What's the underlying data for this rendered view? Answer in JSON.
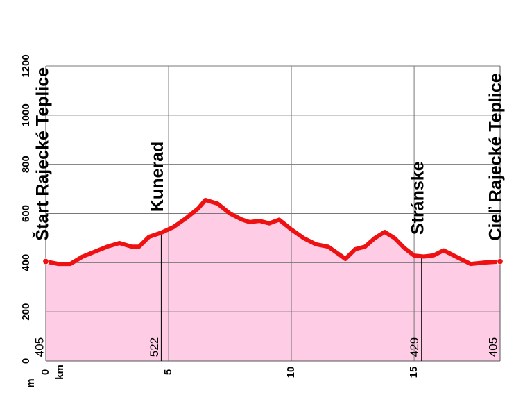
{
  "chart_data": {
    "type": "area",
    "title": "",
    "xlabel": "km",
    "ylabel": "m",
    "xlim": [
      0,
      18.5
    ],
    "ylim": [
      0,
      1200
    ],
    "x_ticks": [
      "0",
      "5",
      "10",
      "15"
    ],
    "y_ticks": [
      "0",
      "200",
      "400",
      "600",
      "800",
      "1000",
      "1200"
    ],
    "grid": true,
    "colors": {
      "fill": "#ffcce6",
      "line": "#ee1111",
      "grid": "#777777"
    },
    "series": [
      {
        "x": [
          0,
          0.5,
          1.0,
          1.5,
          2.0,
          2.5,
          3.0,
          3.5,
          3.8,
          4.2,
          4.7,
          5.2,
          5.7,
          6.2,
          6.5,
          7.0,
          7.5,
          8.0,
          8.3,
          8.7,
          9.1,
          9.5,
          10.0,
          10.5,
          11.0,
          11.5,
          12.0,
          12.2,
          12.6,
          13.0,
          13.4,
          13.8,
          14.2,
          14.6,
          15.0,
          15.4,
          15.8,
          16.2,
          16.8,
          17.3,
          17.8,
          18.5
        ],
        "y": [
          405,
          395,
          395,
          425,
          445,
          465,
          480,
          465,
          465,
          505,
          522,
          545,
          580,
          620,
          655,
          640,
          600,
          575,
          565,
          570,
          560,
          575,
          535,
          500,
          475,
          465,
          430,
          415,
          455,
          465,
          500,
          525,
          500,
          460,
          429,
          425,
          430,
          450,
          420,
          395,
          400,
          405
        ]
      }
    ],
    "markers": [
      {
        "km": 0,
        "name": "Štart Rajecké Teplice",
        "elevation": "405"
      },
      {
        "km": 4.7,
        "name": "Kunerad",
        "elevation": "522"
      },
      {
        "km": 15.3,
        "name": "Stránske",
        "elevation": "429"
      },
      {
        "km": 18.5,
        "name": "Cieľ Rajecké Teplice",
        "elevation": "405"
      }
    ]
  }
}
